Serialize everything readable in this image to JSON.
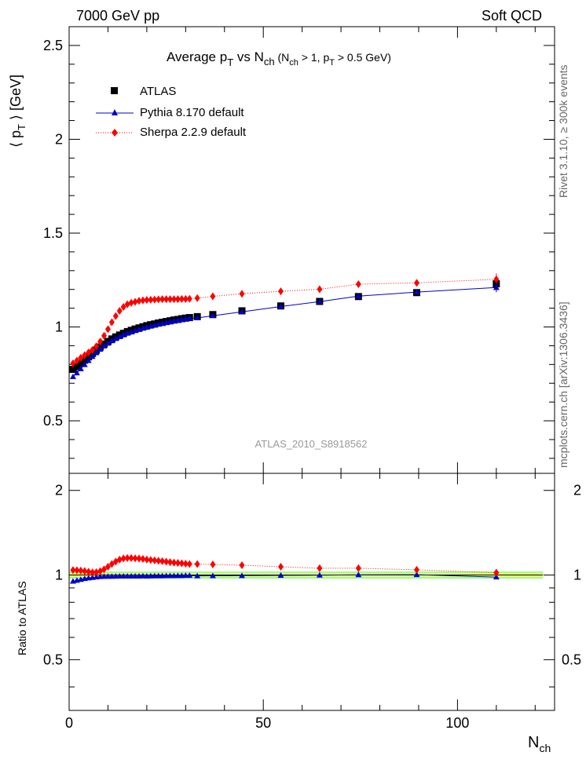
{
  "header": {
    "left": "7000 GeV pp",
    "right": "Soft QCD"
  },
  "side_labels": {
    "rivet": "Rivet 3.1.10, ≥ 300k events",
    "mcplots": "mcplots.cern.ch [arXiv:1306.3436]"
  },
  "chart_data": {
    "type": "scatter",
    "title": {
      "main": "Average p",
      "main_sub": "T",
      "vs": " vs N",
      "vs_sub": "ch",
      "cond_open": " (N",
      "cond_sub1": "ch",
      "cond_mid": " > 1, p",
      "cond_sub2": "T",
      "cond_end": " > 0.5 GeV)"
    },
    "analysis_id": "ATLAS_2010_S8918562",
    "xlabel": "N",
    "xlabel_sub": "ch",
    "ylabel_main": "⟨ p",
    "ylabel_main_sub": "T",
    "ylabel_main_end": " ⟩ [GeV]",
    "ylabel_ratio": "Ratio to ATLAS",
    "xlim": [
      0,
      125
    ],
    "ylim_main": [
      0.22,
      2.6
    ],
    "ylim_ratio": [
      0.33,
      2.3
    ],
    "xticks": [
      0,
      50,
      100
    ],
    "yticks_main": [
      0.5,
      1,
      1.5,
      2,
      2.5
    ],
    "yticks_ratio": [
      0.5,
      1,
      2
    ],
    "legend_position": "top-left",
    "series": [
      {
        "name": "ATLAS",
        "style": "square-marker",
        "color": "#000000",
        "x": [
          1,
          2,
          3,
          4,
          5,
          6,
          7,
          8,
          9,
          10,
          11,
          12,
          13,
          14,
          15,
          16,
          17,
          18,
          19,
          20,
          21,
          22,
          23,
          24,
          25,
          26,
          27,
          28,
          29,
          30,
          31,
          33,
          37,
          44.5,
          54.5,
          64.5,
          74.5,
          89.5,
          110
        ],
        "y": [
          0.774,
          0.789,
          0.806,
          0.823,
          0.841,
          0.859,
          0.876,
          0.893,
          0.909,
          0.923,
          0.936,
          0.947,
          0.957,
          0.966,
          0.975,
          0.982,
          0.989,
          0.995,
          1.001,
          1.007,
          1.012,
          1.016,
          1.021,
          1.025,
          1.029,
          1.033,
          1.037,
          1.04,
          1.044,
          1.047,
          1.05,
          1.055,
          1.066,
          1.086,
          1.112,
          1.136,
          1.162,
          1.183,
          1.23
        ]
      },
      {
        "name": "Pythia 8.170 default",
        "style": "triangle-marker-line",
        "color": "#0000cc",
        "x": [
          1,
          2,
          3,
          4,
          5,
          6,
          7,
          8,
          9,
          10,
          11,
          12,
          13,
          14,
          15,
          16,
          17,
          18,
          19,
          20,
          21,
          22,
          23,
          24,
          25,
          26,
          27,
          28,
          29,
          30,
          31,
          33,
          37,
          44.5,
          54.5,
          64.5,
          74.5,
          89.5,
          110
        ],
        "y": [
          0.735,
          0.755,
          0.777,
          0.799,
          0.821,
          0.842,
          0.862,
          0.881,
          0.898,
          0.913,
          0.926,
          0.938,
          0.948,
          0.957,
          0.966,
          0.973,
          0.98,
          0.986,
          0.993,
          0.998,
          1.004,
          1.009,
          1.014,
          1.018,
          1.023,
          1.027,
          1.031,
          1.035,
          1.039,
          1.043,
          1.046,
          1.048,
          1.06,
          1.081,
          1.109,
          1.135,
          1.164,
          1.186,
          1.21
        ]
      },
      {
        "name": "Sherpa 2.2.9 default",
        "style": "diamond-marker-dotted",
        "color": "#ff0000",
        "x": [
          1,
          2,
          3,
          4,
          5,
          6,
          7,
          8,
          9,
          10,
          11,
          12,
          13,
          14,
          15,
          16,
          17,
          18,
          19,
          20,
          21,
          22,
          23,
          24,
          25,
          26,
          27,
          28,
          29,
          30,
          31,
          33,
          37,
          44.5,
          54.5,
          64.5,
          74.5,
          89.5,
          110
        ],
        "y": [
          0.806,
          0.821,
          0.836,
          0.85,
          0.864,
          0.878,
          0.897,
          0.922,
          0.953,
          0.988,
          1.025,
          1.058,
          1.086,
          1.107,
          1.121,
          1.129,
          1.134,
          1.139,
          1.142,
          1.144,
          1.145,
          1.146,
          1.147,
          1.148,
          1.148,
          1.148,
          1.148,
          1.148,
          1.149,
          1.149,
          1.15,
          1.154,
          1.163,
          1.177,
          1.19,
          1.201,
          1.228,
          1.235,
          1.254
        ]
      }
    ],
    "ratio_series": [
      {
        "name": "Pythia 8.170 default",
        "color": "#0000cc",
        "x": [
          1,
          2,
          3,
          4,
          5,
          6,
          7,
          8,
          9,
          10,
          11,
          12,
          13,
          14,
          15,
          16,
          17,
          18,
          19,
          20,
          21,
          22,
          23,
          24,
          25,
          26,
          27,
          28,
          29,
          30,
          31,
          33,
          37,
          44.5,
          54.5,
          64.5,
          74.5,
          89.5,
          110
        ],
        "y": [
          0.95,
          0.957,
          0.964,
          0.971,
          0.976,
          0.98,
          0.984,
          0.987,
          0.988,
          0.989,
          0.989,
          0.99,
          0.991,
          0.991,
          0.991,
          0.991,
          0.991,
          0.991,
          0.992,
          0.991,
          0.992,
          0.993,
          0.993,
          0.993,
          0.994,
          0.994,
          0.994,
          0.995,
          0.995,
          0.996,
          0.996,
          0.993,
          0.994,
          0.995,
          0.997,
          0.999,
          1.002,
          1.003,
          0.984
        ]
      },
      {
        "name": "Sherpa 2.2.9 default",
        "color": "#ff0000",
        "x": [
          1,
          2,
          3,
          4,
          5,
          6,
          7,
          8,
          9,
          10,
          11,
          12,
          13,
          14,
          15,
          16,
          17,
          18,
          19,
          20,
          21,
          22,
          23,
          24,
          25,
          26,
          27,
          28,
          29,
          30,
          31,
          33,
          37,
          44.5,
          54.5,
          64.5,
          74.5,
          89.5,
          110
        ],
        "y": [
          1.041,
          1.04,
          1.037,
          1.033,
          1.027,
          1.022,
          1.024,
          1.032,
          1.048,
          1.07,
          1.095,
          1.117,
          1.135,
          1.146,
          1.15,
          1.15,
          1.147,
          1.145,
          1.141,
          1.136,
          1.131,
          1.128,
          1.124,
          1.12,
          1.116,
          1.111,
          1.107,
          1.104,
          1.101,
          1.097,
          1.095,
          1.094,
          1.091,
          1.084,
          1.07,
          1.057,
          1.057,
          1.044,
          1.02
        ]
      }
    ],
    "ratio_band": {
      "inner_color": "#ffff66",
      "outer_color": "#99ff99",
      "inner_half_width": 0.015,
      "outer_half_width": 0.03
    }
  }
}
